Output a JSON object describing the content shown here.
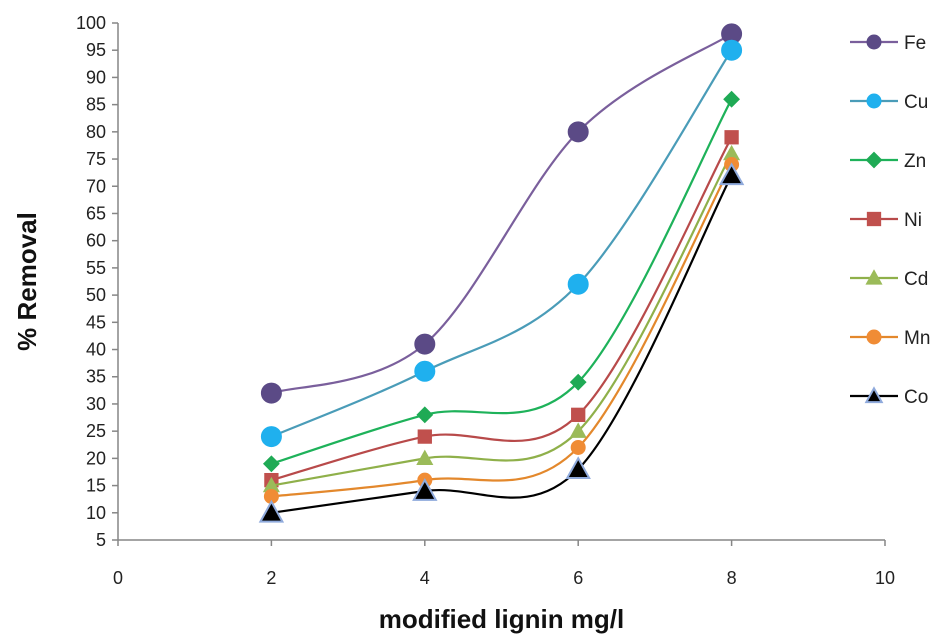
{
  "chart_data": {
    "type": "line",
    "xlabel": "modified lignin mg/l",
    "ylabel": "% Removal",
    "xlim": [
      0,
      10
    ],
    "ylim": [
      5,
      100
    ],
    "xticks": [
      0,
      2,
      4,
      6,
      8,
      10
    ],
    "yticks": [
      5,
      10,
      15,
      20,
      25,
      30,
      35,
      40,
      45,
      50,
      55,
      60,
      65,
      70,
      75,
      80,
      85,
      90,
      95,
      100
    ],
    "grid": false,
    "legend_position": "right",
    "smooth": true,
    "x": [
      2,
      4,
      6,
      8
    ],
    "series": [
      {
        "name": "Fe",
        "values": [
          32,
          41,
          80,
          98
        ],
        "color": "#7a5f9c",
        "marker": "circle",
        "marker_fill": "#5b4a86",
        "marker_size": "large"
      },
      {
        "name": "Cu",
        "values": [
          24,
          36,
          52,
          95
        ],
        "color": "#4a9cb8",
        "marker": "circle",
        "marker_fill": "#1fb0ee",
        "marker_size": "large"
      },
      {
        "name": "Zn",
        "values": [
          19,
          28,
          34,
          86
        ],
        "color": "#1eb25a",
        "marker": "diamond",
        "marker_fill": "#1faa55",
        "marker_size": "medium"
      },
      {
        "name": "Ni",
        "values": [
          16,
          24,
          28,
          79
        ],
        "color": "#b84a4a",
        "marker": "square",
        "marker_fill": "#c0504d",
        "marker_size": "medium"
      },
      {
        "name": "Cd",
        "values": [
          15,
          20,
          25,
          76
        ],
        "color": "#8fb04a",
        "marker": "triangle",
        "marker_fill": "#9bbb59",
        "marker_size": "medium"
      },
      {
        "name": "Mn",
        "values": [
          13,
          16,
          22,
          74
        ],
        "color": "#e3882c",
        "marker": "circle",
        "marker_fill": "#f08c35",
        "marker_size": "medium"
      },
      {
        "name": "Co",
        "values": [
          10,
          14,
          18,
          72
        ],
        "color": "#000000",
        "marker": "triangle",
        "marker_fill": "#000000",
        "marker_stroke": "#8faadc",
        "marker_size": "large"
      }
    ]
  }
}
